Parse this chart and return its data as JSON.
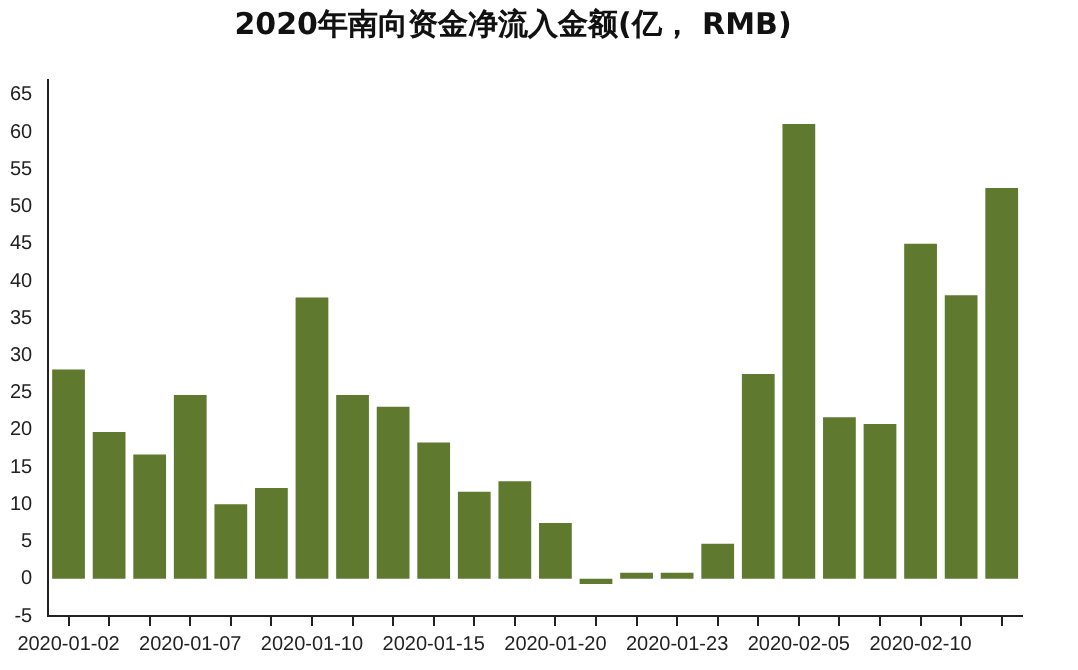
{
  "chart_data": {
    "type": "bar",
    "title": "2020年南向资金净流入金额(亿， RMB)",
    "categories": [
      "2020-01-02",
      null,
      null,
      "2020-01-07",
      null,
      null,
      "2020-01-10",
      null,
      null,
      "2020-01-15",
      null,
      null,
      "2020-01-20",
      null,
      null,
      "2020-01-23",
      null,
      null,
      "2020-02-05",
      null,
      null,
      "2020-02-10",
      null,
      null
    ],
    "values": [
      28.1,
      19.7,
      16.7,
      24.7,
      10,
      12.2,
      37.8,
      24.7,
      23.1,
      18.3,
      11.7,
      13.1,
      7.5,
      -0.7,
      0.8,
      0.8,
      4.7,
      27.5,
      61.1,
      21.7,
      20.8,
      45,
      38.1,
      52.5
    ],
    "color": "#5f7a2e",
    "ylim": [
      -5,
      67
    ],
    "yticks": [
      -5,
      0,
      5,
      10,
      15,
      20,
      25,
      30,
      35,
      40,
      45,
      50,
      55,
      60,
      65
    ],
    "grid": false,
    "legend": false
  }
}
